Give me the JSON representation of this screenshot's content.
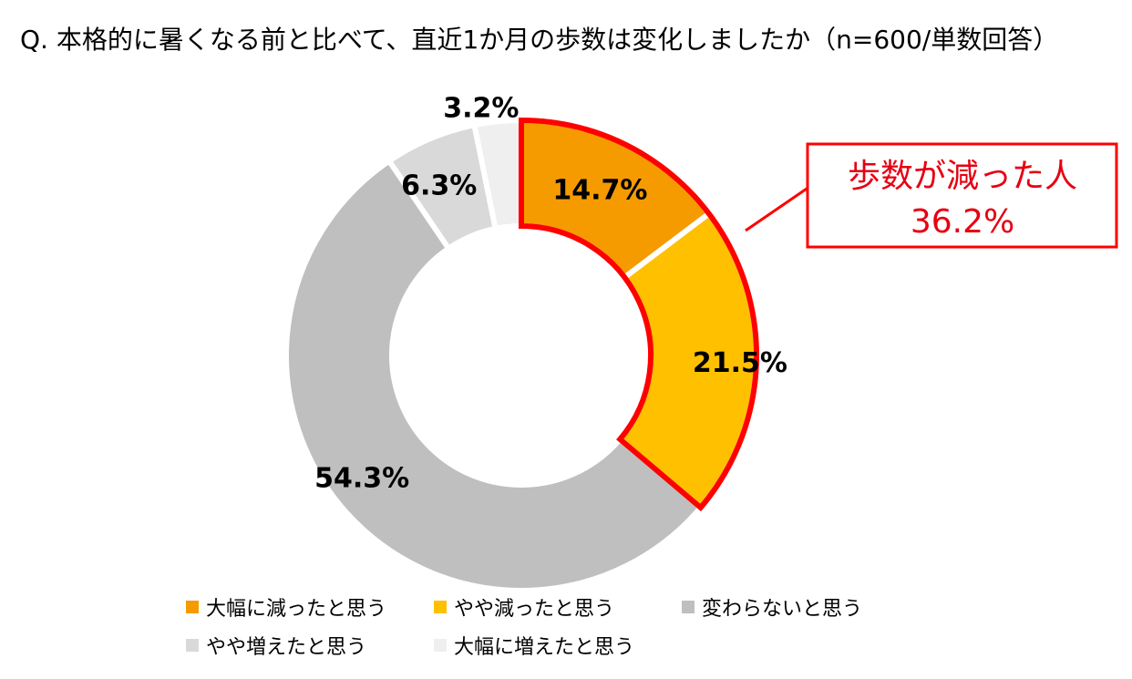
{
  "title": "Q. 本格的に暑くなる前と比べて、直近1か月の歩数は変化しましたか（n=600/単数回答）",
  "chart_data": {
    "type": "pie",
    "categories": [
      "大幅に減ったと思う",
      "やや減ったと思う",
      "変わらないと思う",
      "やや増えたと思う",
      "大幅に増えたと思う"
    ],
    "values": [
      14.7,
      21.5,
      54.3,
      6.3,
      3.2
    ],
    "labels": [
      "14.7%",
      "21.5%",
      "54.3%",
      "6.3%",
      "3.2%"
    ],
    "colors": [
      "#f59b00",
      "#ffc000",
      "#bfbfbf",
      "#d9d9d9",
      "#efefef"
    ],
    "donut": true,
    "legend_position": "bottom",
    "highlight": {
      "slices": [
        0,
        1
      ],
      "color": "#ff0000",
      "label_line1": "歩数が減った人",
      "label_line2": "36.2%"
    }
  }
}
